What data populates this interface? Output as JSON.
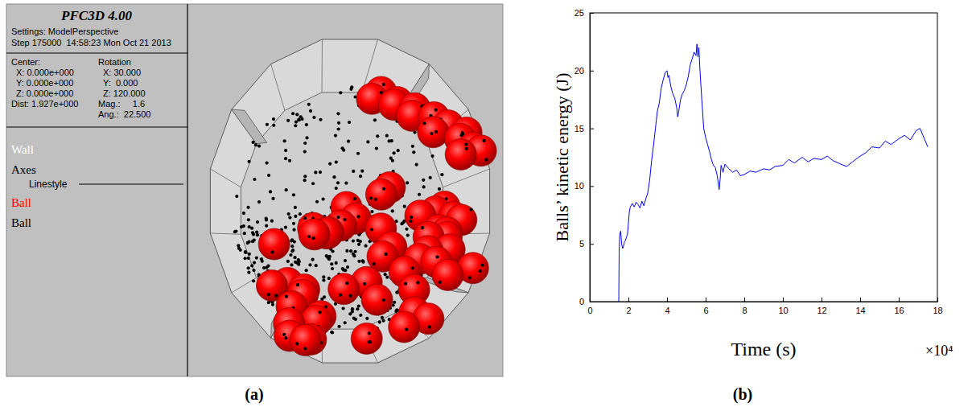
{
  "panel_labels": [
    "(a)",
    "(b)"
  ],
  "screenshot": {
    "header": {
      "title": "PFC3D 4.00",
      "settings": "Settings: ModelPerspective",
      "step": "Step 175000  14:58:23 Mon Oct 21 2013"
    },
    "view": {
      "center_label": "Center:",
      "rotation_label": "Rotation",
      "center": [
        "X: 0.000e+000",
        "Y: 0.000e+000",
        "Z: 0.000e+000"
      ],
      "rotation": [
        "X: 30.000",
        "Y:  0.000",
        "Z: 120.000"
      ],
      "dist": "Dist: 1.927e+000",
      "mag": "Mag.:     1.6",
      "ang": "Ang.:  22.500"
    },
    "legend": [
      {
        "label": "Wall",
        "color": "#ffffff"
      },
      {
        "label": "Axes",
        "color": "#000000"
      },
      {
        "label": "Ball",
        "color": "#ff0000"
      },
      {
        "label": "Ball",
        "color": "#000000"
      }
    ],
    "linestyle_label": "Linestyle"
  },
  "chart_data": {
    "type": "line",
    "xlabel": "Time (s)",
    "ylabel": "Balls’ kinetic energy (J)",
    "annotations": [
      "×10⁴"
    ],
    "color": "#0000ff",
    "x": [
      1.5,
      1.52,
      1.55,
      1.6,
      1.65,
      1.7,
      1.75,
      1.8,
      1.85,
      1.9,
      1.95,
      2.0,
      2.05,
      2.1,
      2.2,
      2.3,
      2.4,
      2.5,
      2.6,
      2.7,
      2.8,
      2.9,
      3.0,
      3.1,
      3.2,
      3.3,
      3.4,
      3.5,
      3.6,
      3.7,
      3.8,
      3.9,
      4.0,
      4.05,
      4.1,
      4.2,
      4.3,
      4.4,
      4.5,
      4.55,
      4.6,
      4.7,
      4.8,
      4.9,
      5.0,
      5.1,
      5.2,
      5.3,
      5.4,
      5.5,
      5.55,
      5.6,
      5.65,
      5.7,
      5.8,
      5.9,
      6.0,
      6.1,
      6.2,
      6.3,
      6.4,
      6.5,
      6.6,
      6.7,
      6.75,
      6.8,
      6.9,
      7.0,
      7.2,
      7.4,
      7.6,
      7.8,
      8.0,
      8.3,
      8.6,
      9.0,
      9.3,
      9.6,
      10.0,
      10.3,
      10.6,
      11.0,
      11.3,
      11.6,
      12.0,
      12.3,
      12.6,
      13.0,
      13.3,
      13.6,
      14.0,
      14.3,
      14.6,
      15.0,
      15.3,
      15.6,
      16.0,
      16.3,
      16.6,
      16.9,
      17.1,
      17.3,
      17.5
    ],
    "values": [
      0,
      4.2,
      5.8,
      6.1,
      5.0,
      4.6,
      4.8,
      5.2,
      5.3,
      5.6,
      5.8,
      6.8,
      7.8,
      8.2,
      8.5,
      8.2,
      8.6,
      8.4,
      8.1,
      8.7,
      8.3,
      8.9,
      9.4,
      10.5,
      12.2,
      13.5,
      15.0,
      16.5,
      17.2,
      18.5,
      19.2,
      19.8,
      20.0,
      19.4,
      19.6,
      18.6,
      18.0,
      17.6,
      16.8,
      16.0,
      16.4,
      17.5,
      18.0,
      18.3,
      18.8,
      19.5,
      20.5,
      21.0,
      21.6,
      21.3,
      22.3,
      21.2,
      22.0,
      20.2,
      17.5,
      15.0,
      14.2,
      13.6,
      13.0,
      12.3,
      11.8,
      11.6,
      10.9,
      9.7,
      10.6,
      11.8,
      11.2,
      11.9,
      11.5,
      11.2,
      11.4,
      10.9,
      11.0,
      11.3,
      11.2,
      11.5,
      11.4,
      11.7,
      11.8,
      12.3,
      12.0,
      12.5,
      12.1,
      12.4,
      12.3,
      12.6,
      12.2,
      11.9,
      11.7,
      12.1,
      12.6,
      12.9,
      13.4,
      13.3,
      13.9,
      13.6,
      14.1,
      14.4,
      14.0,
      14.8,
      15.0,
      14.2,
      13.4
    ],
    "xlim": [
      0,
      18
    ],
    "xticks": [
      0,
      2,
      4,
      6,
      8,
      10,
      12,
      14,
      16,
      18
    ],
    "ylim": [
      0,
      25
    ],
    "yticks": [
      0,
      5,
      10,
      15,
      20,
      25
    ],
    "grid": false
  }
}
